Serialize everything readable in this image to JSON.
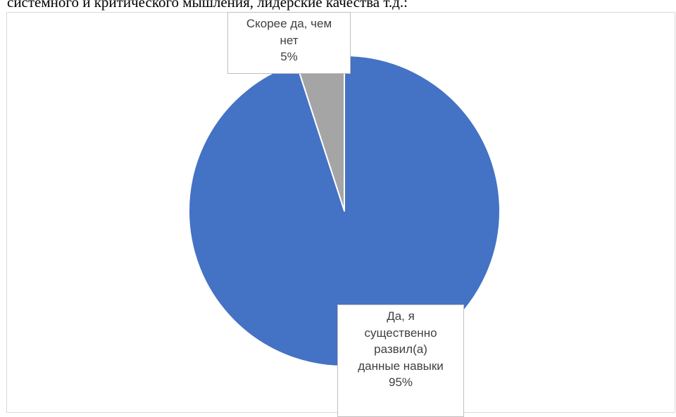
{
  "heading": {
    "text": "системного и критического мышления, лидерские качества т.д.:"
  },
  "chart_data": {
    "type": "pie",
    "categories": [
      "Скорее да, чем нет",
      "Да, я существенно развил(а) данные навыки"
    ],
    "values": [
      5,
      95
    ],
    "colors": [
      "#a5a5a5",
      "#4472c4"
    ],
    "labels": [
      {
        "name_lines": [
          "Скорее да, чем",
          "нет"
        ],
        "percent": "5%"
      },
      {
        "name_lines": [
          "Да, я",
          "существенно",
          "развил(а)",
          "данные навыки"
        ],
        "percent": "95%"
      }
    ]
  }
}
